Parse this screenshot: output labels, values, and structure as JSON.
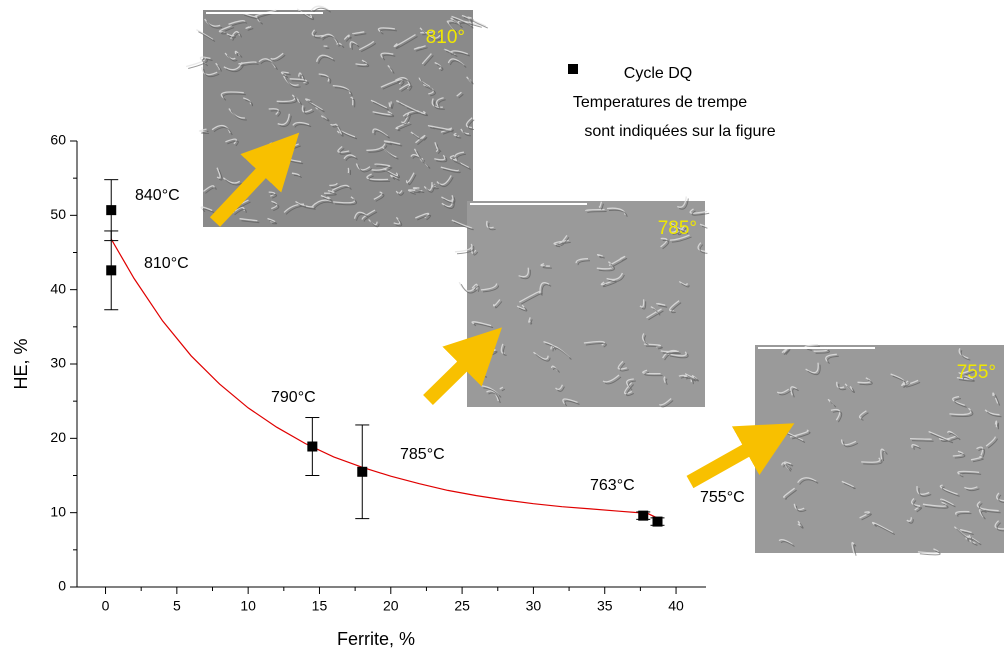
{
  "chart_data": {
    "type": "scatter",
    "x_label": "Ferrite, %",
    "y_label": "HE, %",
    "xlim": [
      -2,
      42.1
    ],
    "ylim": [
      0,
      60
    ],
    "xticks": [
      0,
      5,
      10,
      15,
      20,
      25,
      30,
      35,
      40
    ],
    "yticks": [
      0,
      10,
      20,
      30,
      40,
      50,
      60
    ],
    "series": [
      {
        "name": "Cycle DQ",
        "color": "#000000",
        "x": [
          0.4,
          0.4,
          14.5,
          18,
          37.7,
          38.7
        ],
        "values": [
          50.7,
          42.6,
          18.9,
          15.5,
          9.6,
          8.8
        ],
        "errors": [
          4.1,
          5.3,
          3.9,
          6.3,
          0.5,
          0.5
        ]
      }
    ],
    "fit": {
      "color": "#e00000",
      "x": [
        0.4,
        2,
        4,
        6,
        8,
        10,
        12,
        14,
        16,
        18,
        20,
        22,
        24,
        26,
        28,
        30,
        32,
        34,
        36,
        38,
        39
      ],
      "y": [
        46.8,
        41.5,
        35.8,
        31.1,
        27.3,
        24.1,
        21.5,
        19.3,
        17.5,
        16.1,
        14.9,
        13.9,
        13.0,
        12.3,
        11.7,
        11.2,
        10.8,
        10.5,
        10.2,
        9.9,
        9.0
      ]
    },
    "annotations": [
      "840°C",
      "810°C",
      "790°C",
      "785°C",
      "763°C",
      "755°C"
    ],
    "legend_notes": [
      "Temperatures de trempe",
      "sont indiquées sur la figure"
    ],
    "micrographs": [
      "810°",
      "785°",
      "755°"
    ]
  }
}
